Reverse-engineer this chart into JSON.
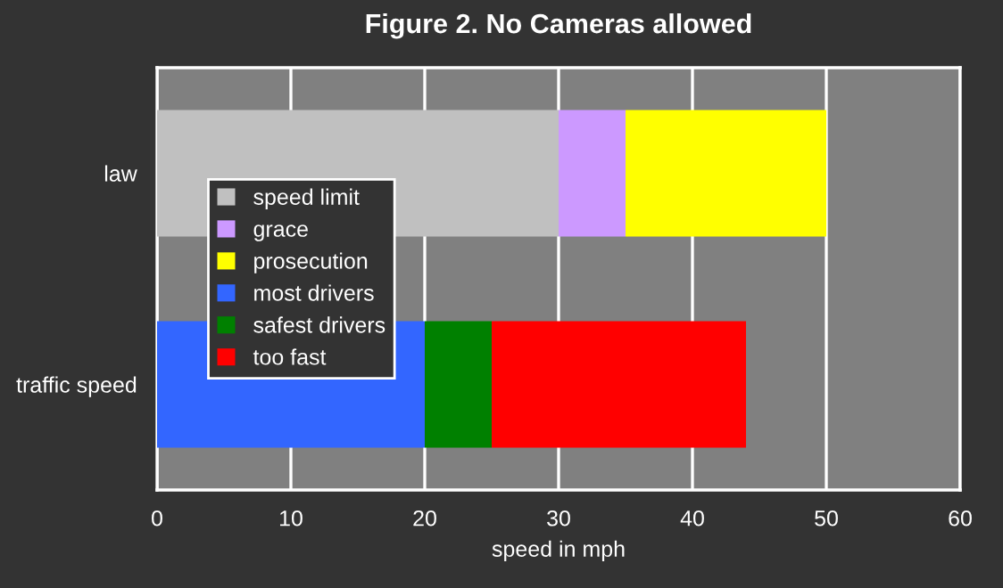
{
  "chart_data": {
    "type": "bar",
    "orientation": "horizontal",
    "stacked": true,
    "title": "Figure 2. No Cameras allowed",
    "xlabel": "speed in mph",
    "categories": [
      "law",
      "traffic speed"
    ],
    "series": [
      {
        "name": "speed limit",
        "color": "#c0c0c0",
        "values": [
          30,
          null
        ]
      },
      {
        "name": "grace",
        "color": "#cc99ff",
        "values": [
          5,
          null
        ]
      },
      {
        "name": "prosecution",
        "color": "#ffff00",
        "values": [
          15,
          null
        ]
      },
      {
        "name": "most drivers",
        "color": "#3366ff",
        "values": [
          null,
          20
        ]
      },
      {
        "name": "safest drivers",
        "color": "#008000",
        "values": [
          null,
          5
        ]
      },
      {
        "name": "too fast",
        "color": "#ff0000",
        "values": [
          null,
          19
        ]
      }
    ],
    "xlim": [
      0,
      60
    ],
    "xticks": [
      0,
      10,
      20,
      30,
      40,
      50,
      60
    ],
    "grid": "x",
    "legend": "center left"
  }
}
